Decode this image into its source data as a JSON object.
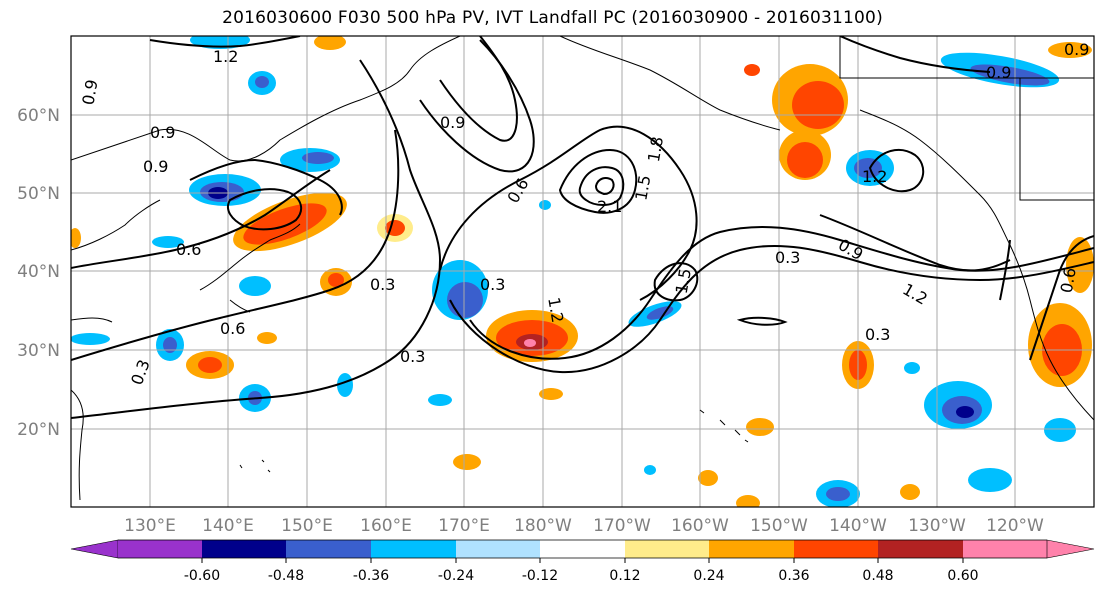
{
  "title": "2016030600 F030 500 hPa PV, IVT Landfall PC (2016030900 - 2016031100)",
  "lat_labels": [
    "60°N",
    "50°N",
    "40°N",
    "30°N",
    "20°N"
  ],
  "lon_labels": [
    "130°E",
    "140°E",
    "150°E",
    "160°E",
    "170°E",
    "180°W",
    "170°W",
    "160°W",
    "150°W",
    "140°W",
    "130°W",
    "120°W"
  ],
  "colorbar": {
    "ticks": [
      "-0.60",
      "-0.48",
      "-0.36",
      "-0.24",
      "-0.12",
      "0.12",
      "0.24",
      "0.36",
      "0.48",
      "0.60"
    ],
    "colors": [
      "#9932cc",
      "#00008b",
      "#3a5fcd",
      "#00bfff",
      "#b0e2ff",
      "#ffffff",
      "#ffec8b",
      "#ffa500",
      "#ff4500",
      "#b22222",
      "#ff82ab"
    ]
  },
  "contour_labels": [
    "1.2",
    "0.9",
    "0.9",
    "0.9",
    "0.6",
    "0.6",
    "0.3",
    "0.3",
    "0.3",
    "1.2",
    "0.9",
    "0.6",
    "2.1",
    "1.5",
    "1.8",
    "0.3",
    "0.9",
    "1.2",
    "1.5",
    "0.3",
    "0.3",
    "1.2",
    "0.9",
    "0.9",
    "0.6"
  ]
}
